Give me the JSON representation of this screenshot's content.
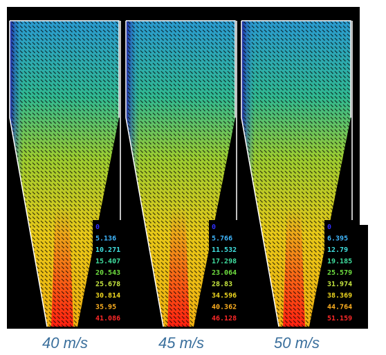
{
  "panels": [
    {
      "caption": "40 m/s",
      "legend": {
        "values": [
          "0",
          "5.136",
          "10.271",
          "15.407",
          "20.543",
          "25.678",
          "30.814",
          "35.95",
          "41.086"
        ]
      }
    },
    {
      "caption": "45 m/s",
      "legend": {
        "values": [
          "0",
          "5.766",
          "11.532",
          "17.298",
          "23.064",
          "28.83",
          "34.596",
          "40.362",
          "46.128"
        ]
      }
    },
    {
      "caption": "50 m/s",
      "legend": {
        "values": [
          "0",
          "6.395",
          "12.79",
          "19.185",
          "25.579",
          "31.974",
          "38.369",
          "44.764",
          "51.159"
        ]
      }
    }
  ],
  "legend_colors": [
    "#3030ff",
    "#40b8ff",
    "#40e0e0",
    "#40e0a0",
    "#70e040",
    "#c8e840",
    "#f0d820",
    "#ffb020",
    "#ff2828"
  ]
}
